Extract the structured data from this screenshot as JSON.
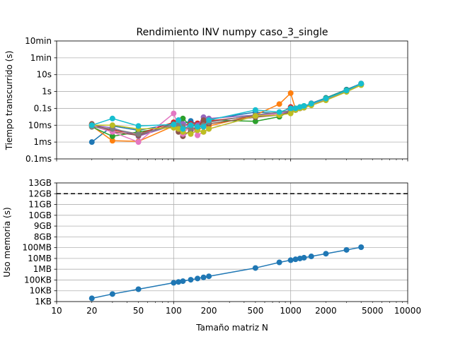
{
  "chart_data": [
    {
      "type": "line",
      "title": "Rendimiento INV numpy caso_3_single",
      "xlabel": "",
      "ylabel": "Tiempo transcurrido (s)",
      "xscale": "log",
      "yscale": "log",
      "xlim": [
        10,
        10000
      ],
      "ylim": [
        0.0001,
        600
      ],
      "grid": true,
      "yticks": [
        {
          "value": 0.0001,
          "label": "0.1ms"
        },
        {
          "value": 0.001,
          "label": "1ms"
        },
        {
          "value": 0.01,
          "label": "10ms"
        },
        {
          "value": 0.1,
          "label": "0.1s"
        },
        {
          "value": 1,
          "label": "1s"
        },
        {
          "value": 10,
          "label": "10s"
        },
        {
          "value": 60,
          "label": "1min"
        },
        {
          "value": 600,
          "label": "10min"
        }
      ],
      "x": [
        20,
        30,
        50,
        100,
        110,
        120,
        140,
        160,
        180,
        200,
        500,
        800,
        1000,
        1100,
        1200,
        1300,
        1500,
        2000,
        3000,
        4000
      ],
      "series": [
        {
          "color": "#1f77b4",
          "values": [
            0.001,
            0.009,
            0.005,
            0.012,
            0.015,
            0.012,
            0.018,
            0.011,
            0.012,
            0.022,
            0.06,
            0.05,
            0.07,
            0.09,
            0.11,
            0.13,
            0.2,
            0.42,
            1.3,
            3.0
          ]
        },
        {
          "color": "#ff7f0e",
          "values": [
            0.009,
            0.0012,
            0.0011,
            0.009,
            0.005,
            0.006,
            0.007,
            0.005,
            0.008,
            0.009,
            0.04,
            0.18,
            0.8,
            0.09,
            0.1,
            0.13,
            0.19,
            0.35,
            1.1,
            2.6
          ]
        },
        {
          "color": "#2ca02c",
          "values": [
            0.008,
            0.0022,
            0.004,
            0.008,
            0.01,
            0.025,
            0.009,
            0.012,
            0.014,
            0.02,
            0.017,
            0.032,
            0.07,
            0.1,
            0.12,
            0.14,
            0.18,
            0.4,
            1.2,
            2.8
          ]
        },
        {
          "color": "#d62728",
          "values": [
            0.011,
            0.005,
            0.003,
            0.015,
            0.008,
            0.01,
            0.012,
            0.013,
            0.015,
            0.018,
            0.035,
            0.05,
            0.12,
            0.09,
            0.1,
            0.12,
            0.17,
            0.36,
            1.1,
            2.7
          ]
        },
        {
          "color": "#9467bd",
          "values": [
            0.01,
            0.007,
            0.0022,
            0.01,
            0.02,
            0.012,
            0.008,
            0.01,
            0.03,
            0.025,
            0.04,
            0.05,
            0.06,
            0.08,
            0.1,
            0.12,
            0.16,
            0.33,
            1.0,
            2.5
          ]
        },
        {
          "color": "#8c564b",
          "values": [
            0.012,
            0.004,
            0.0025,
            0.012,
            0.004,
            0.0022,
            0.005,
            0.007,
            0.02,
            0.012,
            0.03,
            0.04,
            0.06,
            0.08,
            0.1,
            0.11,
            0.16,
            0.34,
            1.05,
            2.6
          ]
        },
        {
          "color": "#e377c2",
          "values": [
            0.009,
            0.004,
            0.001,
            0.05,
            0.008,
            0.003,
            0.01,
            0.0025,
            0.004,
            0.006,
            0.035,
            0.05,
            0.08,
            0.09,
            0.1,
            0.12,
            0.17,
            0.35,
            1.1,
            2.7
          ]
        },
        {
          "color": "#7f7f7f",
          "values": [
            0.008,
            0.006,
            0.003,
            0.009,
            0.01,
            0.008,
            0.006,
            0.008,
            0.01,
            0.015,
            0.04,
            0.06,
            0.07,
            0.08,
            0.11,
            0.12,
            0.18,
            0.37,
            1.1,
            2.8
          ]
        },
        {
          "color": "#bcbd22",
          "values": [
            0.01,
            0.01,
            0.006,
            0.007,
            0.006,
            0.004,
            0.003,
            0.005,
            0.004,
            0.006,
            0.035,
            0.04,
            0.05,
            0.08,
            0.1,
            0.11,
            0.15,
            0.3,
            0.95,
            2.4
          ]
        },
        {
          "color": "#17becf",
          "values": [
            0.01,
            0.025,
            0.009,
            0.011,
            0.02,
            0.006,
            0.01,
            0.008,
            0.008,
            0.02,
            0.08,
            0.06,
            0.1,
            0.1,
            0.12,
            0.14,
            0.19,
            0.38,
            1.15,
            2.9
          ]
        }
      ]
    },
    {
      "type": "line",
      "title": "",
      "xlabel": "Tamaño matriz N",
      "ylabel": "Uso memoria (s)",
      "xscale": "log",
      "yscale": "log",
      "xlim": [
        10,
        10000
      ],
      "grid": true,
      "xticks": [
        {
          "value": 10,
          "label": "10"
        },
        {
          "value": 20,
          "label": "20"
        },
        {
          "value": 50,
          "label": "50"
        },
        {
          "value": 100,
          "label": "100"
        },
        {
          "value": 200,
          "label": "200"
        },
        {
          "value": 500,
          "label": "500"
        },
        {
          "value": 1000,
          "label": "1000"
        },
        {
          "value": 2000,
          "label": "2000"
        },
        {
          "value": 5000,
          "label": "5000"
        },
        {
          "value": 10000,
          "label": "10000"
        }
      ],
      "ytick_labels": [
        "1KB",
        "10KB",
        "100KB",
        "1MB",
        "10MB",
        "100MB",
        "8GB",
        "9GB",
        "10GB",
        "11GB",
        "12GB",
        "13GB"
      ],
      "reference_line": {
        "label": "12GB",
        "style": "dashed",
        "color": "#000000"
      },
      "series": [
        {
          "color": "#1f77b4",
          "x": [
            20,
            30,
            50,
            100,
            110,
            120,
            140,
            160,
            180,
            200,
            500,
            800,
            1000,
            1100,
            1200,
            1300,
            1500,
            2000,
            3000,
            4000
          ],
          "values": [
            "2KB",
            "5KB",
            "14KB",
            "55KB",
            "66KB",
            "78KB",
            "106KB",
            "138KB",
            "175KB",
            "220KB",
            "1.3MB",
            "4.3MB",
            "6.9MB",
            "8.3MB",
            "9.9MB",
            "11.6MB",
            "15.4MB",
            "27.4MB",
            "61.8MB",
            "110MB"
          ]
        }
      ]
    }
  ]
}
